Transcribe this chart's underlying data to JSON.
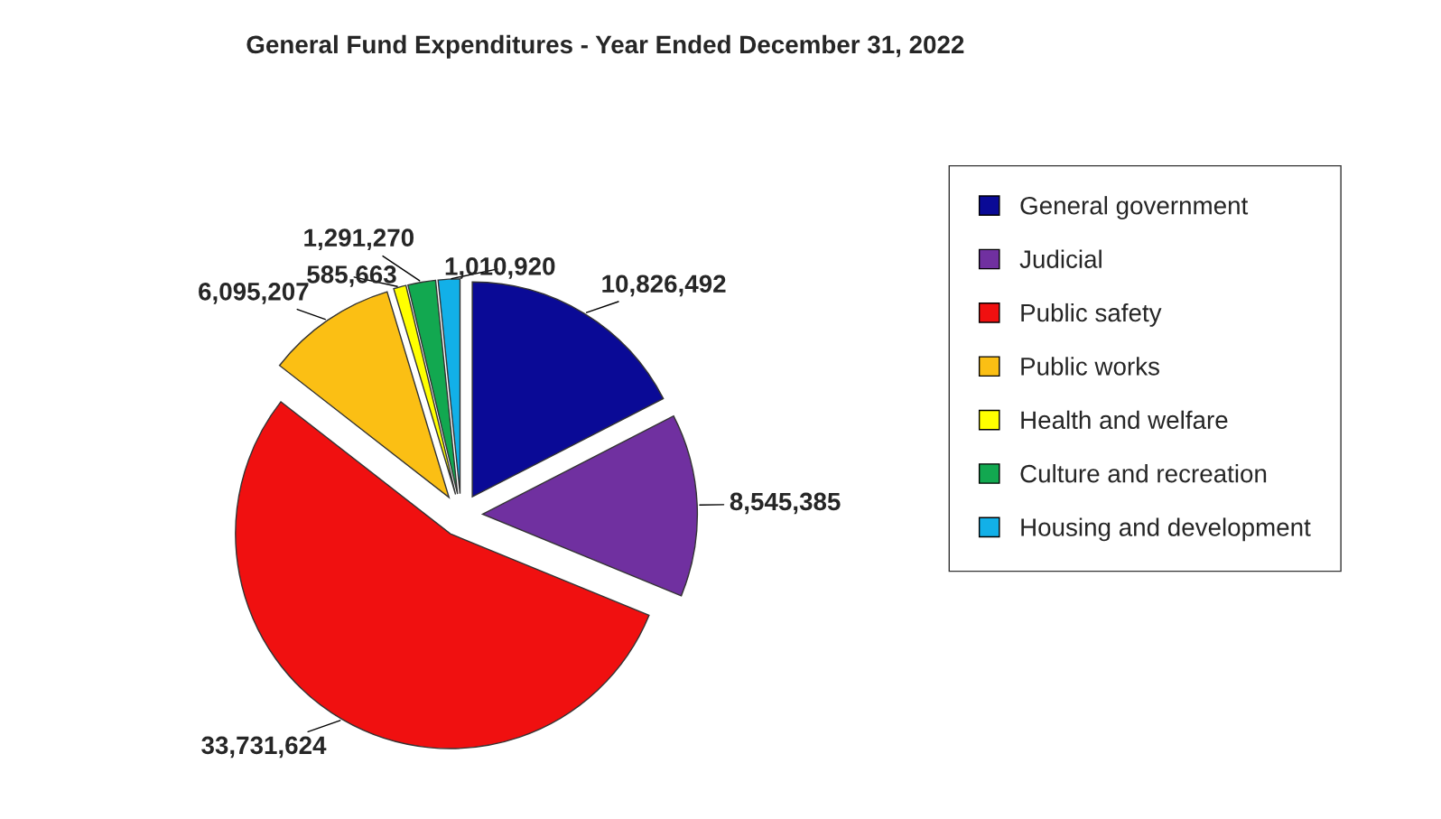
{
  "chart_data": {
    "type": "pie",
    "title": "General Fund Expenditures - Year Ended December 31, 2022",
    "categories": [
      "General government",
      "Judicial",
      "Public safety",
      "Public works",
      "Health and welfare",
      "Culture and recreation",
      "Housing and development"
    ],
    "values": [
      10826492,
      8545385,
      33731624,
      6095207,
      585663,
      1291270,
      1010920
    ],
    "colors": [
      "#0a0a96",
      "#7030a0",
      "#f01010",
      "#fbbf14",
      "#ffff00",
      "#12a850",
      "#12b0e8"
    ],
    "value_labels": [
      "10,826,492",
      "8,545,385",
      "33,731,624",
      "6,095,207",
      "585,663",
      "1,291,270",
      "1,010,920"
    ],
    "legend": "right"
  }
}
